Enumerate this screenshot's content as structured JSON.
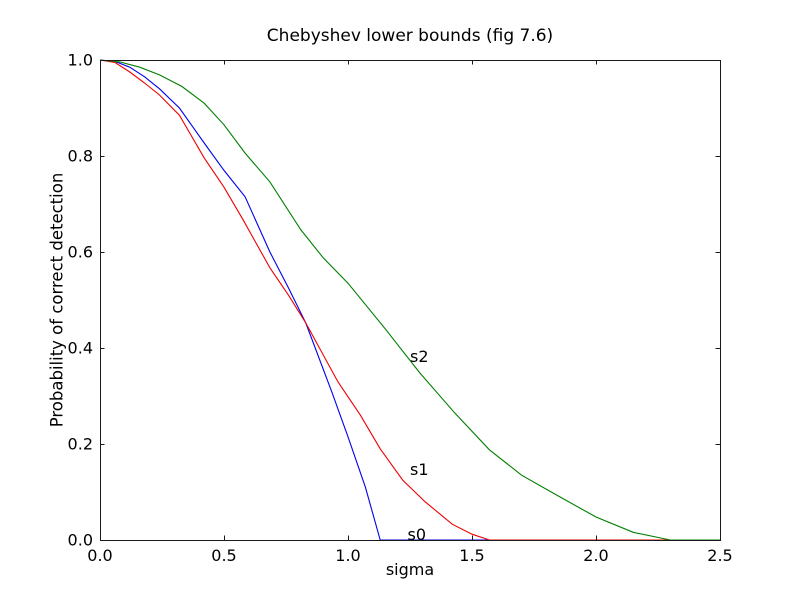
{
  "figure": {
    "title": "Chebyshev lower bounds (fig 7.6)",
    "xlabel": "sigma",
    "ylabel": "Probability of correct detection"
  },
  "colors": {
    "background": "#ffffff",
    "axes_frame": "#1a1a1a",
    "text": "#000000",
    "series_s0": "#0000ee",
    "series_s1": "#ee0000",
    "series_s2": "#007f00"
  },
  "chart_data": {
    "type": "line",
    "title": "Chebyshev lower bounds (fig 7.6)",
    "xlabel": "sigma",
    "ylabel": "Probability of correct detection",
    "xlim": [
      0.0,
      2.5
    ],
    "ylim": [
      0.0,
      1.0
    ],
    "xticks": [
      "0.0",
      "0.5",
      "1.0",
      "1.5",
      "2.0",
      "2.5"
    ],
    "yticks": [
      "0.0",
      "0.2",
      "0.4",
      "0.6",
      "0.8",
      "1.0"
    ],
    "xtick_values": [
      0.0,
      0.5,
      1.0,
      1.5,
      2.0,
      2.5
    ],
    "ytick_values": [
      0.0,
      0.2,
      0.4,
      0.6,
      0.8,
      1.0
    ],
    "grid": false,
    "legend_position": "none",
    "series": [
      {
        "name": "s0",
        "color_key": "series_s0",
        "points": [
          [
            0.0,
            1.0
          ],
          [
            0.06,
            0.997
          ],
          [
            0.12,
            0.985
          ],
          [
            0.18,
            0.965
          ],
          [
            0.24,
            0.94
          ],
          [
            0.32,
            0.9
          ],
          [
            0.42,
            0.827
          ],
          [
            0.5,
            0.77
          ],
          [
            0.585,
            0.715
          ],
          [
            0.685,
            0.6
          ],
          [
            0.76,
            0.525
          ],
          [
            0.83,
            0.452
          ],
          [
            0.935,
            0.308
          ],
          [
            1.0,
            0.215
          ],
          [
            1.07,
            0.11
          ],
          [
            1.13,
            0.0
          ],
          [
            2.5,
            0.0
          ]
        ]
      },
      {
        "name": "s1",
        "color_key": "series_s1",
        "points": [
          [
            0.0,
            1.0
          ],
          [
            0.06,
            0.995
          ],
          [
            0.12,
            0.975
          ],
          [
            0.18,
            0.952
          ],
          [
            0.24,
            0.927
          ],
          [
            0.32,
            0.885
          ],
          [
            0.42,
            0.796
          ],
          [
            0.5,
            0.735
          ],
          [
            0.577,
            0.667
          ],
          [
            0.685,
            0.567
          ],
          [
            0.76,
            0.51
          ],
          [
            0.83,
            0.452
          ],
          [
            0.96,
            0.329
          ],
          [
            1.05,
            0.26
          ],
          [
            1.13,
            0.19
          ],
          [
            1.22,
            0.125
          ],
          [
            1.31,
            0.08
          ],
          [
            1.42,
            0.033
          ],
          [
            1.5,
            0.012
          ],
          [
            1.57,
            0.0
          ],
          [
            2.5,
            0.0
          ]
        ]
      },
      {
        "name": "s2",
        "color_key": "series_s2",
        "points": [
          [
            0.0,
            1.0
          ],
          [
            0.08,
            0.996
          ],
          [
            0.16,
            0.985
          ],
          [
            0.24,
            0.969
          ],
          [
            0.33,
            0.945
          ],
          [
            0.42,
            0.91
          ],
          [
            0.5,
            0.865
          ],
          [
            0.585,
            0.806
          ],
          [
            0.685,
            0.746
          ],
          [
            0.81,
            0.646
          ],
          [
            0.9,
            0.588
          ],
          [
            1.0,
            0.535
          ],
          [
            1.15,
            0.44
          ],
          [
            1.29,
            0.348
          ],
          [
            1.43,
            0.265
          ],
          [
            1.57,
            0.188
          ],
          [
            1.7,
            0.135
          ],
          [
            1.84,
            0.094
          ],
          [
            2.0,
            0.048
          ],
          [
            2.15,
            0.016
          ],
          [
            2.3,
            0.0
          ],
          [
            2.5,
            0.0
          ]
        ]
      }
    ],
    "annotations": [
      {
        "label": "s0",
        "x": 1.24,
        "y_top": 0.031
      },
      {
        "label": "s1",
        "x": 1.25,
        "y_top": 0.167
      },
      {
        "label": "s2",
        "x": 1.25,
        "y_top": 0.402
      }
    ]
  }
}
